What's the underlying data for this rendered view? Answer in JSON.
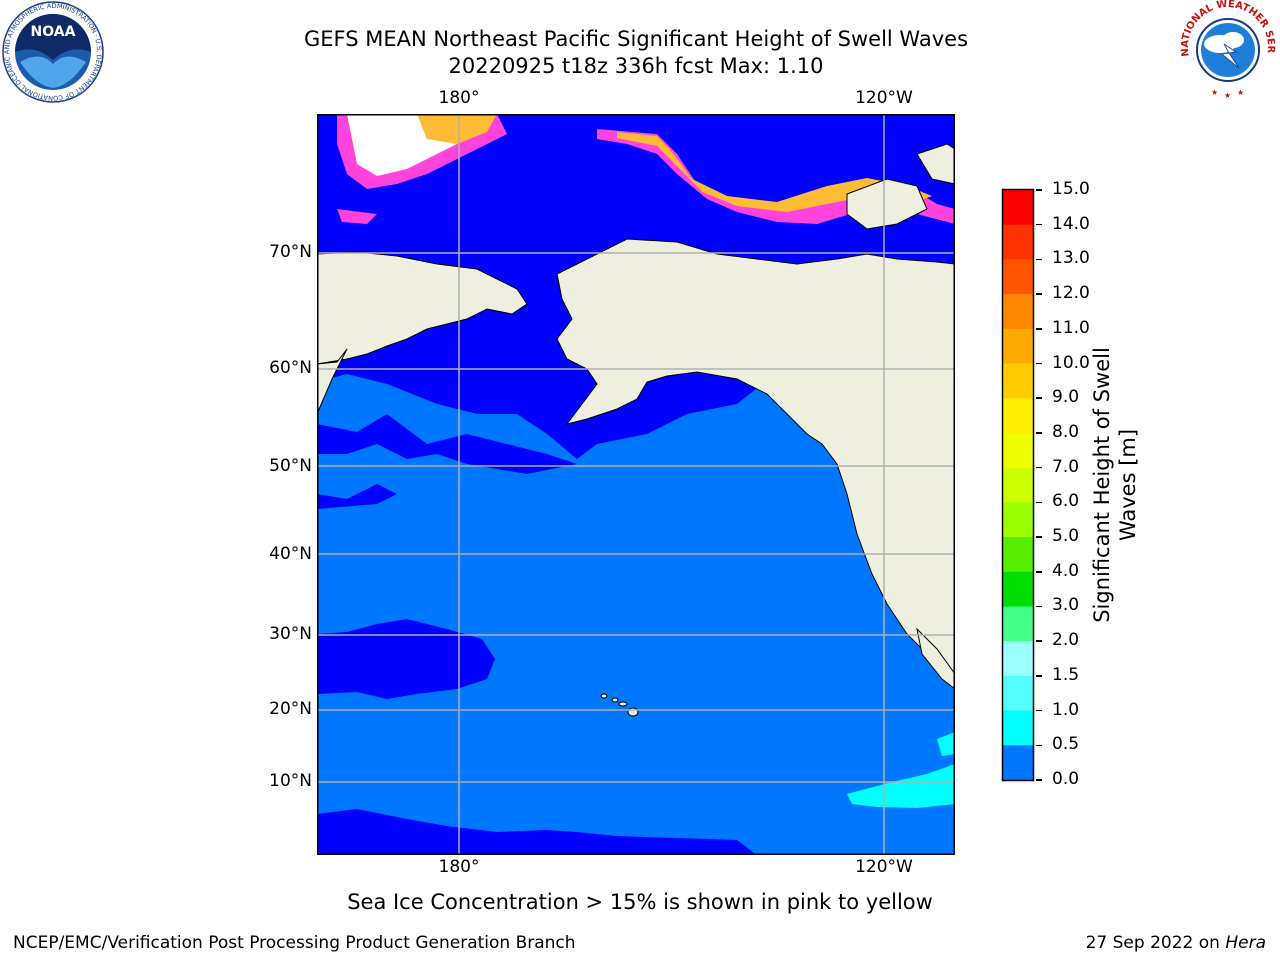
{
  "title": {
    "line1": "GEFS MEAN Northeast Pacific Significant Height of Swell Waves",
    "line2": "20220925 t18z 336h fcst   Max: 1.10"
  },
  "map": {
    "lon_labels_top": [
      "180°",
      "120°W"
    ],
    "lon_labels_bottom": [
      "180°",
      "120°W"
    ],
    "lat_labels": [
      "70°N",
      "60°N",
      "50°N",
      "40°N",
      "30°N",
      "20°N",
      "10°N"
    ],
    "colors": {
      "land": "#efefdf",
      "ocean_low": "#0000ff",
      "ocean_mid": "#0077ff",
      "ocean_cyan": "#00ffff",
      "ice_pink": "#ff44dd",
      "ice_orange": "#ffbb33",
      "ice_yellow": "#ffee44",
      "grid": "#b0b0b0"
    }
  },
  "colorbar": {
    "tick_labels": [
      "15.0",
      "14.0",
      "13.0",
      "12.0",
      "11.0",
      "10.0",
      "9.0",
      "8.0",
      "7.0",
      "6.0",
      "5.0",
      "4.0",
      "3.0",
      "2.0",
      "1.5",
      "1.0",
      "0.5",
      "0.0"
    ],
    "colors": [
      "#ff0000",
      "#ff3300",
      "#ff5500",
      "#ff8800",
      "#ffaa00",
      "#ffcc00",
      "#ffee00",
      "#eeff00",
      "#ccff00",
      "#99ff00",
      "#55ee00",
      "#00dd00",
      "#44ff88",
      "#99ffff",
      "#55ffff",
      "#00ffff",
      "#0077ff",
      "#0000ff"
    ],
    "label_line1": "Significant Height of Swell",
    "label_line2": "Waves [m]"
  },
  "caption": "Sea Ice Concentration > 15% is shown in pink to yellow",
  "footer": {
    "left": "NCEP/EMC/Verification Post Processing Product Generation Branch",
    "right_prefix": "27 Sep 2022 on ",
    "right_host": "Hera"
  },
  "logos": {
    "noaa_text": "NOAA",
    "noaa_ring": "NATIONAL OCEANIC AND ATMOSPHERIC ADMINISTRATION · U.S. DEPARTMENT OF COMMERCE",
    "nws_ring": "NATIONAL WEATHER SERVICE"
  }
}
